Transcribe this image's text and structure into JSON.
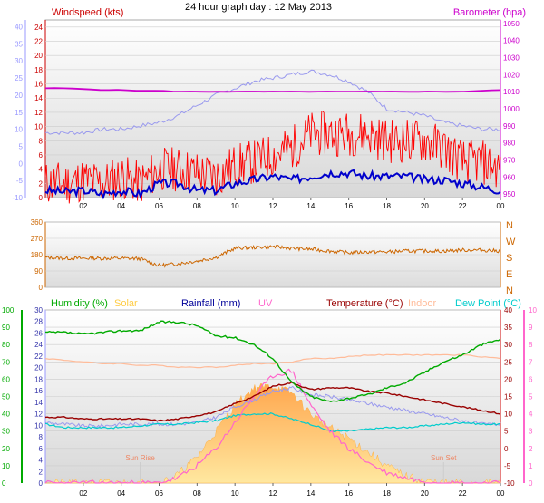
{
  "title": "24 hour graph day : 12 May 2013",
  "colors": {
    "windspeed": "#cc0000",
    "gust": "#ff0000",
    "wind_avg": "#0000cc",
    "barometer": "#cc00cc",
    "baro_axis": "#9999ff",
    "direction": "#cc6600",
    "humidity": "#00aa00",
    "solar": "#ffcc44",
    "rainfall": "#000099",
    "uv": "#ff66cc",
    "temperature": "#990000",
    "indoor": "#ffbb99",
    "dewpoint": "#00cccc",
    "apparent": "#9999ee"
  },
  "x_ticks": [
    "02",
    "04",
    "06",
    "08",
    "10",
    "12",
    "14",
    "16",
    "18",
    "20",
    "22",
    "00"
  ],
  "chart_data": [
    {
      "type": "line",
      "panel": "wind-barometer",
      "title": "24 hour graph day : 12 May 2013",
      "left_label": "Windspeed (kts)",
      "right_label": "Barometer (hpa)",
      "left_ticks": [
        "24",
        "22",
        "20",
        "18",
        "16",
        "14",
        "12",
        "10",
        "8",
        "6",
        "4",
        "2",
        "0"
      ],
      "left_outer_ticks": [
        "40",
        "35",
        "30",
        "25",
        "20",
        "15",
        "10",
        "5",
        "0",
        "-5",
        "-10"
      ],
      "right_ticks": [
        "1050",
        "1040",
        "1030",
        "1020",
        "1010",
        "1000",
        "990",
        "980",
        "970",
        "960",
        "950"
      ],
      "ylim_wind": [
        0,
        25
      ],
      "ylim_baro": [
        948,
        1052
      ],
      "ylim_outer": [
        -10,
        42
      ],
      "x_hours": [
        0,
        1,
        2,
        3,
        4,
        5,
        6,
        7,
        8,
        9,
        10,
        11,
        12,
        13,
        14,
        15,
        16,
        17,
        18,
        19,
        20,
        21,
        22,
        23,
        24
      ],
      "series": [
        {
          "name": "Gust",
          "axis": "wind",
          "values": [
            2,
            2,
            2.5,
            2,
            3,
            2,
            4,
            4,
            3.5,
            3,
            4.5,
            5,
            6,
            7,
            9,
            9,
            9,
            9,
            8,
            8,
            8,
            7,
            5,
            5,
            4
          ]
        },
        {
          "name": "Average",
          "axis": "wind",
          "values": [
            1,
            0.8,
            1,
            0.5,
            1,
            0.5,
            2,
            2,
            1,
            1,
            2,
            2.5,
            3,
            2.5,
            3,
            3.5,
            3.5,
            3,
            3,
            3,
            2.5,
            2.5,
            2,
            1.5,
            1
          ]
        },
        {
          "name": "Barometer",
          "axis": "baro",
          "values": [
            1012,
            1012,
            1011.5,
            1011,
            1011,
            1010.5,
            1010.5,
            1010,
            1010,
            1010,
            1010,
            1010,
            1010,
            1010,
            1010,
            1010,
            1010,
            1010,
            1010,
            1010,
            1010,
            1010,
            1010,
            1010.5,
            1011
          ]
        },
        {
          "name": "Outer",
          "axis": "outer",
          "values": [
            9,
            9,
            9,
            10,
            10,
            11,
            12,
            14,
            17,
            20,
            22,
            24,
            25,
            26,
            27,
            26,
            24,
            21,
            16,
            15,
            14,
            12,
            11,
            10,
            10
          ]
        }
      ]
    },
    {
      "type": "line",
      "panel": "wind-direction",
      "left_ticks": [
        "360",
        "270",
        "180",
        "90",
        "0"
      ],
      "right_labels": [
        "N",
        "W",
        "S",
        "E",
        "N"
      ],
      "ylim": [
        0,
        360
      ],
      "x_hours": [
        0,
        1,
        2,
        3,
        4,
        5,
        6,
        7,
        8,
        9,
        10,
        11,
        12,
        13,
        14,
        15,
        16,
        17,
        18,
        19,
        20,
        21,
        22,
        23,
        24
      ],
      "series": [
        {
          "name": "Direction",
          "values": [
            165,
            160,
            160,
            160,
            160,
            158,
            120,
            130,
            145,
            165,
            215,
            220,
            225,
            215,
            210,
            200,
            190,
            195,
            195,
            200,
            200,
            200,
            205,
            205,
            200
          ]
        }
      ]
    },
    {
      "type": "line",
      "panel": "temperature-humidity",
      "legend": [
        "Humidity (%)",
        "Solar",
        "Rainfall (mm)",
        "UV",
        "Temperature (°C)",
        "Indoor",
        "Dew Point (°C)"
      ],
      "humidity_ticks": [
        "100",
        "90",
        "80",
        "70",
        "60",
        "50",
        "40",
        "30",
        "20",
        "10",
        "0"
      ],
      "temp_ticks_left": [
        "30",
        "28",
        "26",
        "24",
        "22",
        "20",
        "18",
        "16",
        "14",
        "12",
        "10",
        "8",
        "6",
        "4",
        "2",
        "0"
      ],
      "temp_ticks_right": [
        "40",
        "35",
        "30",
        "25",
        "20",
        "15",
        "10",
        "5",
        "0",
        "-5",
        "-10"
      ],
      "uv_ticks": [
        "10",
        "9",
        "8",
        "7",
        "6",
        "5",
        "4",
        "3",
        "2",
        "1",
        "0"
      ],
      "annotations": [
        "Sun Rise",
        "Sun Set"
      ],
      "ylim_temp": [
        -10,
        40
      ],
      "ylim_humidity": [
        0,
        100
      ],
      "ylim_uv": [
        0,
        10
      ],
      "x_hours": [
        0,
        1,
        2,
        3,
        4,
        5,
        6,
        7,
        8,
        9,
        10,
        11,
        12,
        13,
        14,
        15,
        16,
        17,
        18,
        19,
        20,
        21,
        22,
        23,
        24
      ],
      "series": [
        {
          "name": "Humidity (%)",
          "axis": "humidity",
          "values": [
            87,
            87,
            86,
            87,
            88,
            88,
            93,
            93,
            91,
            85,
            84,
            80,
            72,
            58,
            50,
            47,
            49,
            51,
            55,
            58,
            64,
            70,
            74,
            80,
            83
          ]
        },
        {
          "name": "Temperature (°C)",
          "axis": "temp",
          "values": [
            9,
            9,
            8.5,
            8.5,
            8.5,
            8.5,
            8,
            8.5,
            9.5,
            10.5,
            13,
            15,
            18,
            19,
            17,
            17.5,
            17.5,
            16.5,
            16,
            15,
            14,
            13,
            12,
            11,
            10
          ]
        },
        {
          "name": "Indoor",
          "axis": "temp",
          "values": [
            26,
            25.5,
            25,
            24.5,
            24.5,
            24,
            24,
            23.5,
            23.5,
            23.5,
            24,
            24.5,
            24.5,
            25,
            26,
            26,
            26.5,
            27,
            27,
            27,
            27,
            27,
            27,
            26.5,
            26
          ]
        },
        {
          "name": "Dew Point (°C)",
          "axis": "temp",
          "values": [
            7,
            6,
            6,
            6,
            6,
            6.5,
            7,
            7,
            7.5,
            8,
            9.5,
            10,
            10,
            8.5,
            7,
            5,
            5,
            5.5,
            6,
            6,
            6.5,
            7,
            7.5,
            7,
            7
          ]
        },
        {
          "name": "Apparent",
          "axis": "temp",
          "values": [
            7.5,
            7,
            6.5,
            6.5,
            7,
            7,
            7,
            7,
            7.5,
            9,
            12,
            14,
            16.5,
            17.5,
            15.5,
            15,
            14,
            13,
            12,
            11,
            10,
            9,
            8,
            7,
            7
          ]
        },
        {
          "name": "UV",
          "axis": "uv",
          "values": [
            0,
            0,
            0,
            0,
            0,
            0,
            0,
            0.3,
            1,
            2,
            3.5,
            5,
            6.2,
            6.5,
            4.5,
            3,
            2,
            1.2,
            0.6,
            0.3,
            0.1,
            0,
            0,
            0,
            0
          ]
        },
        {
          "name": "Solar",
          "axis": "uv",
          "values": [
            0,
            0,
            0,
            0,
            0,
            0,
            0,
            0.5,
            1.5,
            3,
            4.5,
            5.5,
            5.6,
            5.2,
            4,
            3.2,
            2.6,
            1.8,
            1,
            0.4,
            0.1,
            0,
            0,
            0,
            0
          ]
        }
      ]
    }
  ]
}
